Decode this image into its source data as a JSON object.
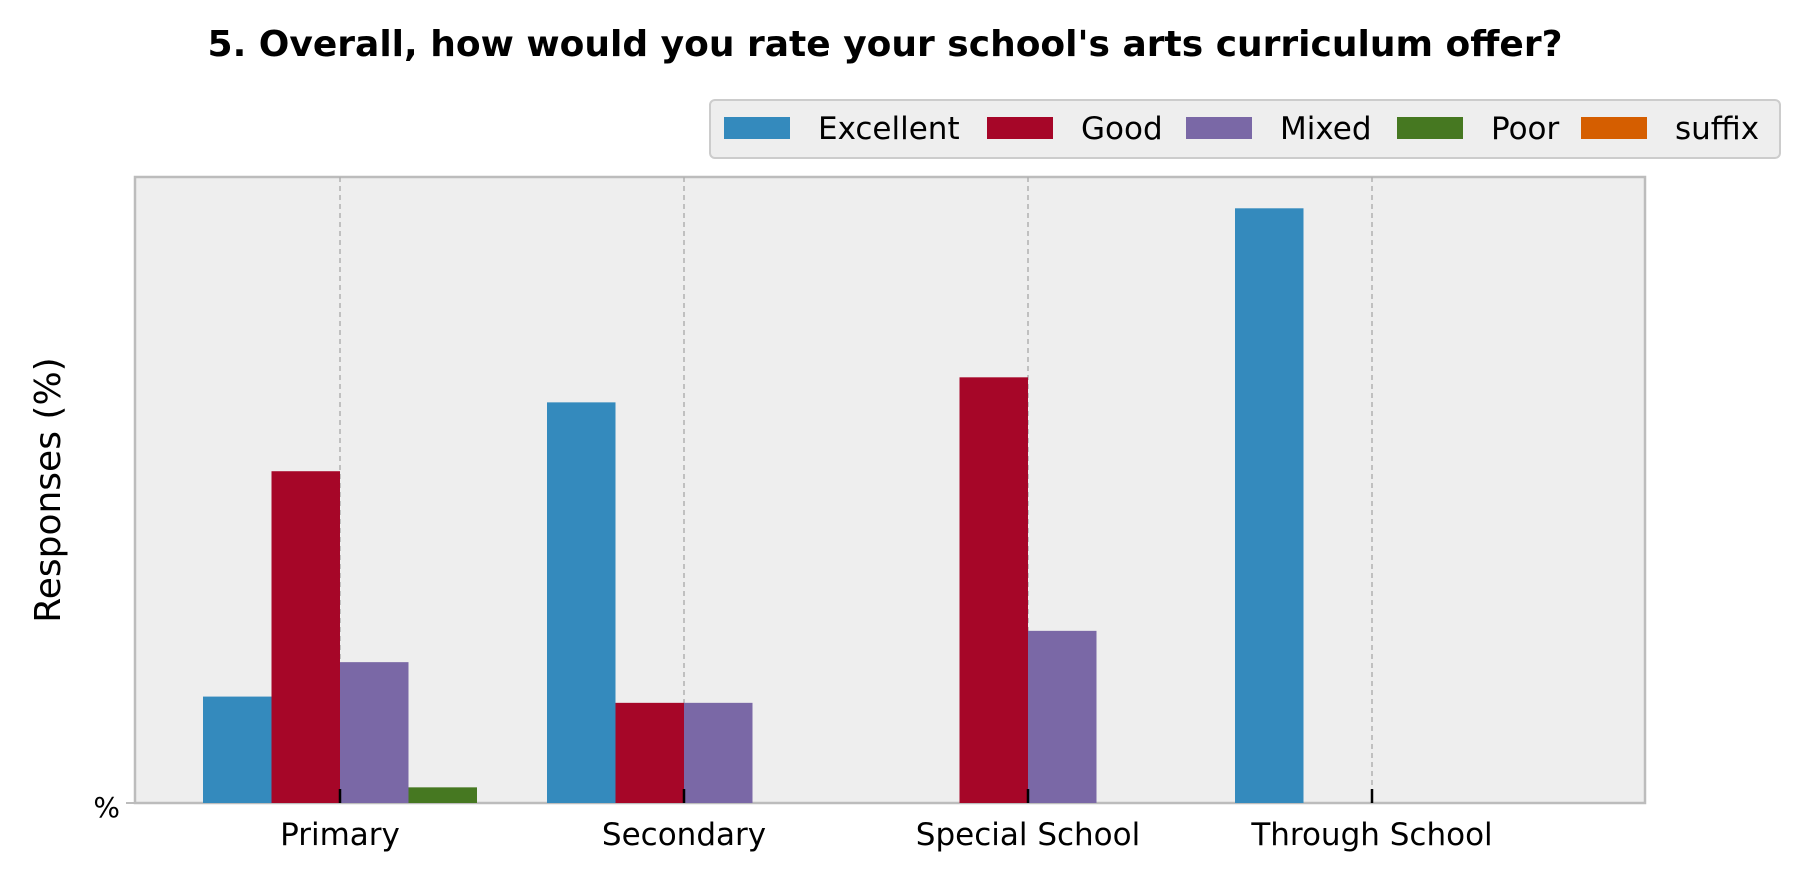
{
  "chart_data": {
    "type": "bar",
    "title": "5. Overall, how would you rate your school's arts curriculum offer?",
    "ylabel": "Responses (%)",
    "xlabel": "",
    "ytick_label": "%",
    "categories": [
      "Primary",
      "Secondary",
      "Special School",
      "Through School"
    ],
    "series": [
      {
        "name": "Excellent",
        "color": "#348abd",
        "values": [
          17,
          64,
          0,
          95
        ]
      },
      {
        "name": "Good",
        "color": "#a60628",
        "values": [
          53,
          16,
          68,
          0
        ]
      },
      {
        "name": "Mixed",
        "color": "#7a68a6",
        "values": [
          22.5,
          16,
          27.5,
          0
        ]
      },
      {
        "name": "Poor",
        "color": "#467821",
        "values": [
          2.5,
          0,
          0,
          0
        ]
      },
      {
        "name": "suffix",
        "color": "#d55e00",
        "values": [
          0,
          0,
          0,
          0
        ]
      }
    ],
    "ylim": [
      0,
      100
    ],
    "grid": "vertical-dashed",
    "legend_position": "top-right",
    "background": "#eeeeee"
  }
}
